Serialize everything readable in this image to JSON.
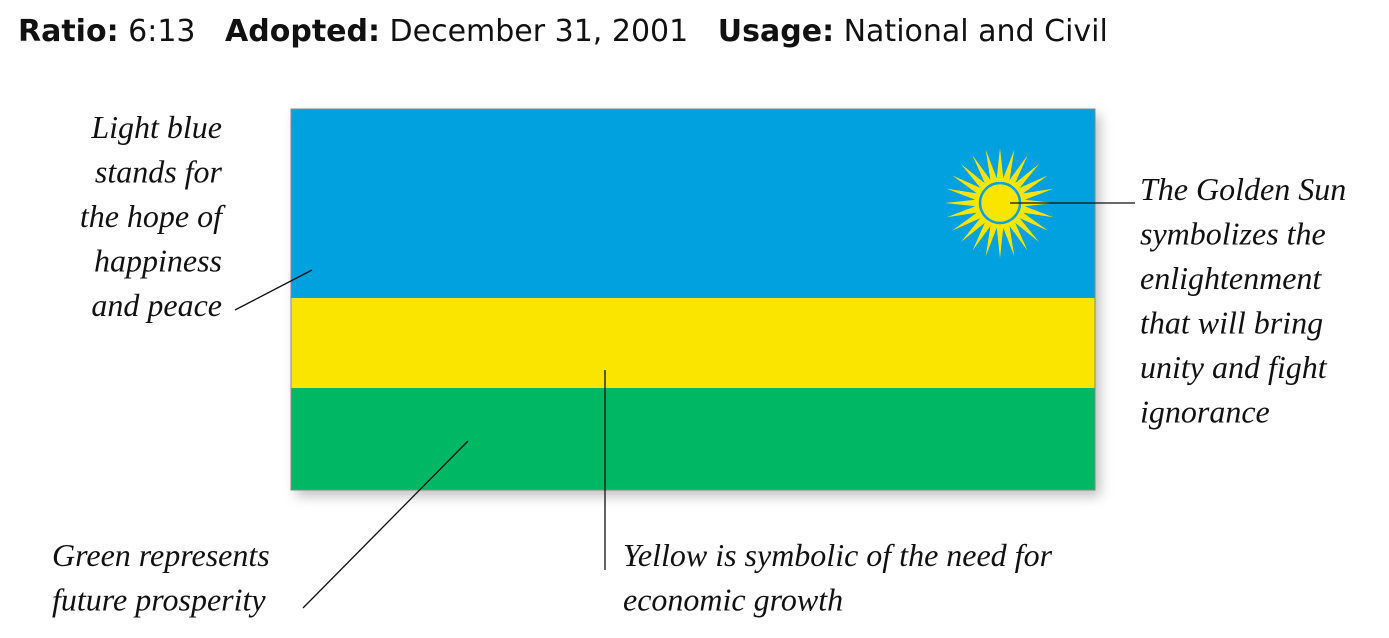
{
  "header": {
    "items": [
      {
        "label": "Ratio:",
        "value": "6:13"
      },
      {
        "label": "Adopted:",
        "value": "December 31, 2001"
      },
      {
        "label": "Usage:",
        "value": "National and Civil"
      }
    ]
  },
  "annotations": {
    "light_blue": [
      "Light blue",
      "stands for",
      "the hope of",
      "happiness",
      "and peace"
    ],
    "golden_sun": [
      "The Golden Sun",
      "symbolizes the",
      "enlightenment",
      "that will bring",
      "unity and fight",
      "ignorance"
    ],
    "green": [
      "Green represents",
      "future prosperity"
    ],
    "yellow": [
      "Yellow is symbolic of the need for",
      "economic growth"
    ]
  }
}
